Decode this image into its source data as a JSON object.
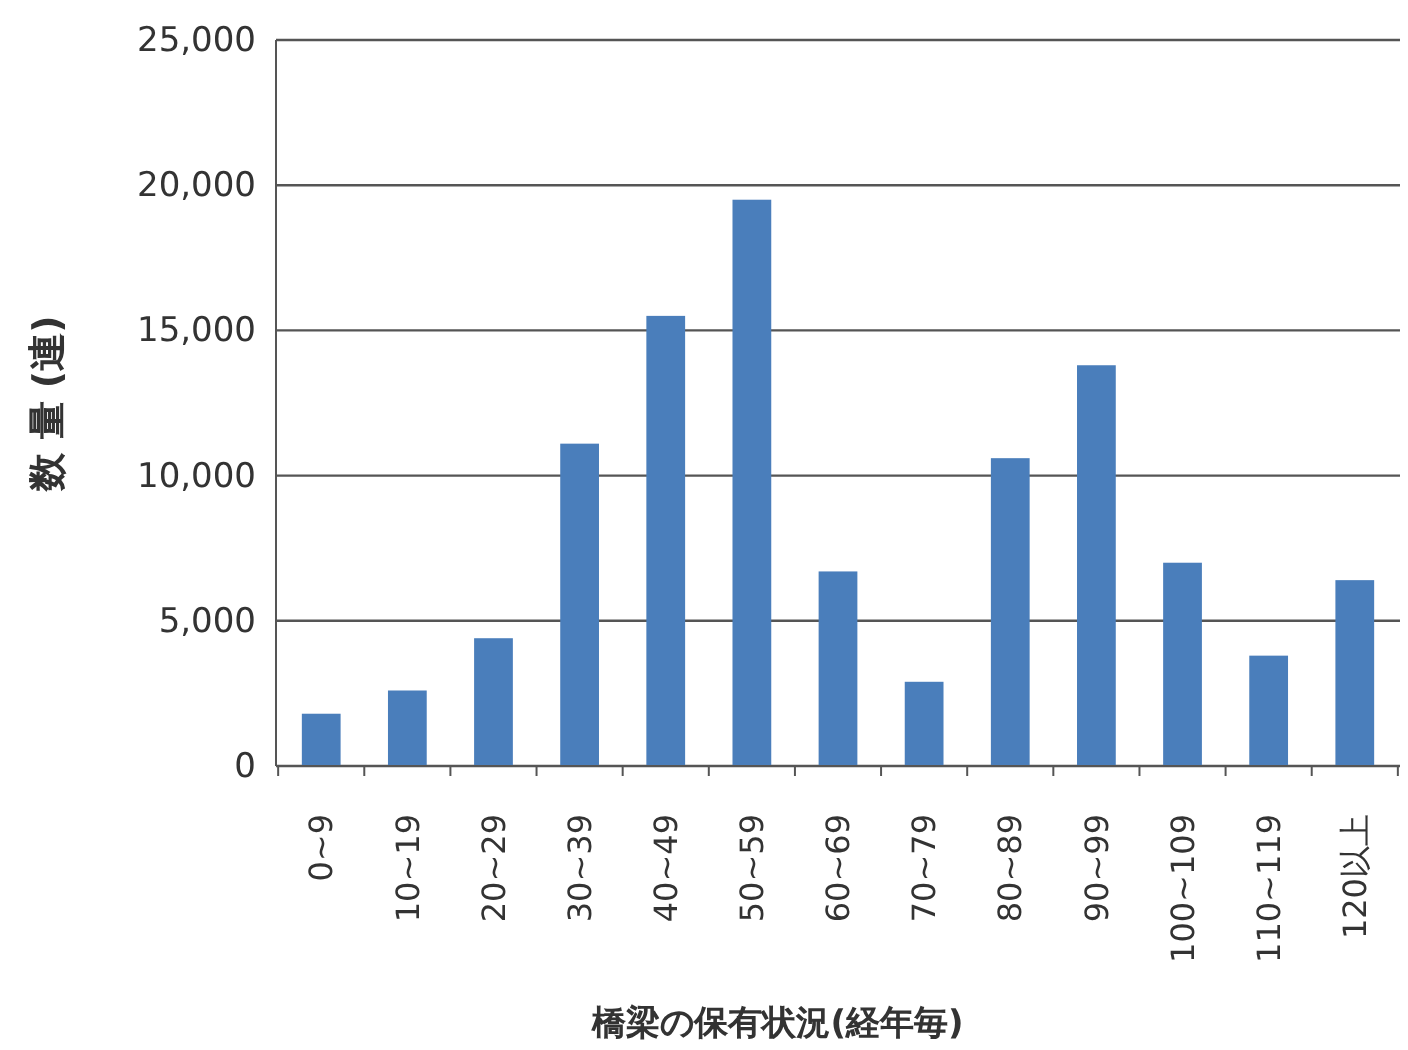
{
  "chart_data": {
    "type": "bar",
    "xlabel": "橋梁の保有状況(経年毎)",
    "ylabel": "数 量 (連)",
    "categories": [
      "0~9",
      "10~19",
      "20~29",
      "30~39",
      "40~49",
      "50~59",
      "60~69",
      "70~79",
      "80~89",
      "90~99",
      "100~109",
      "110~119",
      "120以上"
    ],
    "values": [
      1800,
      2600,
      4400,
      11100,
      15500,
      19500,
      6700,
      2900,
      10600,
      13800,
      7000,
      3800,
      6400
    ],
    "color": "#4a7ebb",
    "ylim": [
      0,
      25000
    ],
    "yticks": [
      {
        "value": 0,
        "label": "0"
      },
      {
        "value": 5000,
        "label": "5,000"
      },
      {
        "value": 10000,
        "label": "10,000"
      },
      {
        "value": 15000,
        "label": "15,000"
      },
      {
        "value": 20000,
        "label": "20,000"
      },
      {
        "value": 25000,
        "label": "25,000"
      }
    ],
    "grid": "y"
  }
}
